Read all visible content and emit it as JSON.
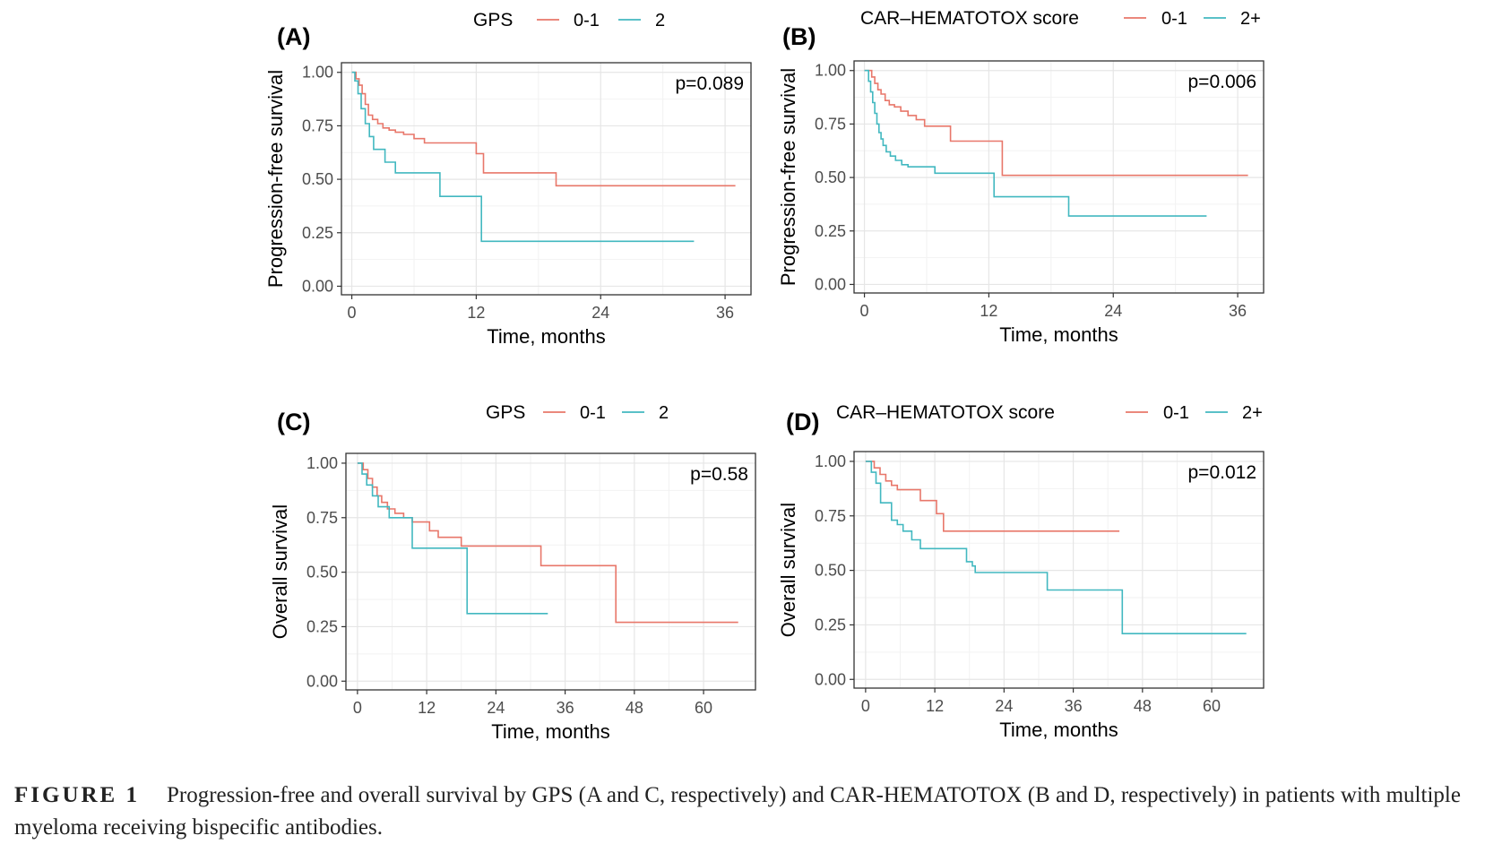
{
  "caption": {
    "label": "FIGURE 1",
    "text": "Progression-free and overall survival by GPS (A and C, respectively) and CAR-HEMATOTOX (B and D, respectively) in patients with multiple myeloma receiving bispecific antibodies."
  },
  "colors": {
    "group_low": "#E8776A",
    "group_high": "#42B8C0"
  },
  "chart_data": [
    {
      "type": "line",
      "panel_label": "(A)",
      "legend_title": "GPS",
      "legend_position": "top",
      "xlabel": "Time, months",
      "ylabel": "Progression-free survival",
      "xlim": [
        -1,
        38.5
      ],
      "ylim": [
        -0.04,
        1.045
      ],
      "xticks": [
        0,
        12,
        24,
        36
      ],
      "yticks": [
        0.0,
        0.25,
        0.5,
        0.75,
        1.0
      ],
      "ytick_labels": [
        "0.00",
        "0.25",
        "0.50",
        "0.75",
        "1.00"
      ],
      "grid": true,
      "pvalue": "p=0.089",
      "series": [
        {
          "name": "0-1",
          "color": "#E8776A",
          "x": [
            0,
            0.4,
            0.7,
            1.0,
            1.3,
            1.6,
            2.0,
            2.5,
            3.0,
            3.6,
            4.2,
            5.0,
            6.0,
            7.0,
            12.0,
            12.7,
            19.7,
            37.0
          ],
          "y": [
            1.0,
            0.97,
            0.94,
            0.9,
            0.85,
            0.8,
            0.78,
            0.76,
            0.74,
            0.73,
            0.72,
            0.71,
            0.69,
            0.67,
            0.62,
            0.53,
            0.47,
            0.47
          ]
        },
        {
          "name": "2",
          "color": "#42B8C0",
          "x": [
            0,
            0.3,
            0.6,
            0.9,
            1.3,
            1.7,
            2.1,
            3.2,
            4.2,
            8.5,
            12.5,
            33.0
          ],
          "y": [
            1.0,
            0.96,
            0.9,
            0.83,
            0.76,
            0.7,
            0.64,
            0.58,
            0.53,
            0.42,
            0.21,
            0.21
          ]
        }
      ]
    },
    {
      "type": "line",
      "panel_label": "(B)",
      "legend_title": "CAR–HEMATOTOX score",
      "legend_position": "top",
      "xlabel": "Time, months",
      "ylabel": "Progression-free survival",
      "xlim": [
        -1,
        38.5
      ],
      "ylim": [
        -0.04,
        1.045
      ],
      "xticks": [
        0,
        12,
        24,
        36
      ],
      "yticks": [
        0.0,
        0.25,
        0.5,
        0.75,
        1.0
      ],
      "ytick_labels": [
        "0.00",
        "0.25",
        "0.50",
        "0.75",
        "1.00"
      ],
      "grid": true,
      "pvalue": "p=0.006",
      "series": [
        {
          "name": "0-1",
          "color": "#E8776A",
          "x": [
            0,
            0.7,
            1.0,
            1.3,
            1.6,
            2.0,
            2.4,
            2.9,
            3.5,
            4.2,
            5.0,
            5.8,
            8.3,
            13.3,
            37.0
          ],
          "y": [
            1.0,
            0.97,
            0.94,
            0.91,
            0.89,
            0.86,
            0.84,
            0.83,
            0.81,
            0.79,
            0.77,
            0.74,
            0.67,
            0.51,
            0.51
          ]
        },
        {
          "name": "2+",
          "color": "#42B8C0",
          "x": [
            0,
            0.4,
            0.6,
            0.8,
            1.0,
            1.2,
            1.4,
            1.6,
            1.8,
            2.1,
            2.5,
            3.0,
            3.6,
            4.2,
            6.8,
            12.5,
            19.7,
            33.0
          ],
          "y": [
            1.0,
            0.95,
            0.9,
            0.85,
            0.8,
            0.75,
            0.71,
            0.68,
            0.65,
            0.62,
            0.6,
            0.58,
            0.56,
            0.55,
            0.52,
            0.41,
            0.32,
            0.32
          ]
        }
      ]
    },
    {
      "type": "line",
      "panel_label": "(C)",
      "legend_title": "GPS",
      "legend_position": "top",
      "xlabel": "Time, months",
      "ylabel": "Overall survival",
      "xlim": [
        -2,
        69
      ],
      "ylim": [
        -0.04,
        1.045
      ],
      "xticks": [
        0,
        12,
        24,
        36,
        48,
        60
      ],
      "yticks": [
        0.0,
        0.25,
        0.5,
        0.75,
        1.0
      ],
      "ytick_labels": [
        "0.00",
        "0.25",
        "0.50",
        "0.75",
        "1.00"
      ],
      "grid": true,
      "pvalue": "p=0.58",
      "series": [
        {
          "name": "0-1",
          "color": "#E8776A",
          "x": [
            0,
            1.0,
            1.8,
            2.6,
            3.4,
            4.2,
            5.2,
            6.5,
            8.0,
            9.5,
            12.5,
            14.0,
            18.0,
            31.8,
            44.8,
            66.0
          ],
          "y": [
            1.0,
            0.97,
            0.93,
            0.89,
            0.85,
            0.82,
            0.79,
            0.77,
            0.75,
            0.73,
            0.69,
            0.66,
            0.62,
            0.53,
            0.27,
            0.27
          ]
        },
        {
          "name": "2",
          "color": "#42B8C0",
          "x": [
            0,
            0.8,
            1.6,
            2.6,
            3.6,
            5.5,
            9.5,
            19.0,
            33.0
          ],
          "y": [
            1.0,
            0.95,
            0.9,
            0.85,
            0.8,
            0.75,
            0.61,
            0.31,
            0.31
          ]
        }
      ]
    },
    {
      "type": "line",
      "panel_label": "(D)",
      "legend_title": "CAR–HEMATOTOX score",
      "legend_position": "top",
      "xlabel": "Time, months",
      "ylabel": "Overall survival",
      "xlim": [
        -2,
        69
      ],
      "ylim": [
        -0.04,
        1.045
      ],
      "xticks": [
        0,
        12,
        24,
        36,
        48,
        60
      ],
      "yticks": [
        0.0,
        0.25,
        0.5,
        0.75,
        1.0
      ],
      "ytick_labels": [
        "0.00",
        "0.25",
        "0.50",
        "0.75",
        "1.00"
      ],
      "grid": true,
      "pvalue": "p=0.012",
      "series": [
        {
          "name": "0-1",
          "color": "#E8776A",
          "x": [
            0,
            1.5,
            2.5,
            3.5,
            4.5,
            5.5,
            9.5,
            12.3,
            13.5,
            44.0
          ],
          "y": [
            1.0,
            0.97,
            0.94,
            0.91,
            0.89,
            0.87,
            0.82,
            0.76,
            0.68,
            0.68
          ]
        },
        {
          "name": "2+",
          "color": "#42B8C0",
          "x": [
            0,
            1.0,
            1.8,
            2.6,
            4.5,
            5.5,
            6.5,
            8.0,
            9.5,
            17.5,
            18.5,
            19.0,
            31.5,
            44.5,
            66.0
          ],
          "y": [
            1.0,
            0.95,
            0.9,
            0.81,
            0.73,
            0.71,
            0.68,
            0.64,
            0.6,
            0.54,
            0.52,
            0.49,
            0.41,
            0.21,
            0.21
          ]
        }
      ]
    }
  ]
}
